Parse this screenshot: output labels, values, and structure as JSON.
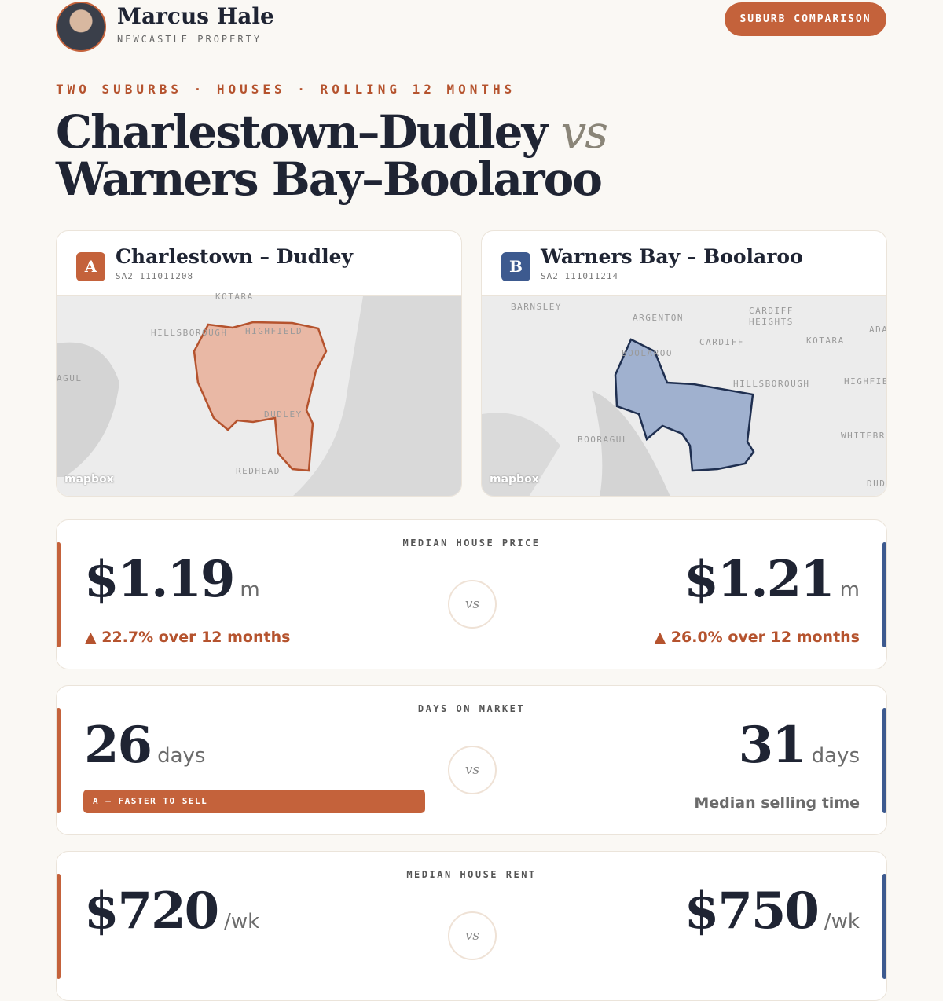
{
  "header": {
    "name": "Marcus Hale",
    "subtitle": "NEWCASTLE PROPERTY",
    "button": "SUBURB COMPARISON"
  },
  "eyebrow": "TWO SUBURBS · HOUSES · ROLLING 12 MONTHS",
  "title": {
    "line1": "Charlestown–Dudley",
    "vs": "vs",
    "line2": "Warners Bay–Boolaroo"
  },
  "suburbs": [
    {
      "badge": "A",
      "name": "Charlestown – Dudley",
      "code": "SA2 111011208",
      "map_labels": [
        "KOTARA",
        "HILLSBOROUGH",
        "HIGHFIELD",
        "AGUL",
        "DUDLEY",
        "REDHEAD"
      ],
      "attribution": "mapbox"
    },
    {
      "badge": "B",
      "name": "Warners Bay – Boolaroo",
      "code": "SA2 111011214",
      "map_labels": [
        "BARNSLEY",
        "ARGENTON",
        "CARDIFF HEIGHTS",
        "CARDIFF",
        "KOTARA",
        "ADA",
        "BOOLAROO",
        "HILLSBOROUGH",
        "HIGHFIE",
        "WHITEBR",
        "BOORAGUL",
        "DUD"
      ],
      "attribution": "mapbox"
    }
  ],
  "metrics": [
    {
      "label": "MEDIAN HOUSE PRICE",
      "vs": "vs",
      "a": {
        "value": "$1.19",
        "unit": "m",
        "note": "▲ 22.7% over 12 months"
      },
      "b": {
        "value": "$1.21",
        "unit": "m",
        "note": "▲ 26.0% over 12 months"
      }
    },
    {
      "label": "DAYS ON MARKET",
      "vs": "vs",
      "a": {
        "value": "26",
        "unit": "days",
        "badge": "A — FASTER TO SELL"
      },
      "b": {
        "value": "31",
        "unit": "days",
        "note": "Median selling time"
      }
    },
    {
      "label": "MEDIAN HOUSE RENT",
      "vs": "vs",
      "a": {
        "value": "$720",
        "unit": "/wk"
      },
      "b": {
        "value": "$750",
        "unit": "/wk"
      }
    }
  ]
}
